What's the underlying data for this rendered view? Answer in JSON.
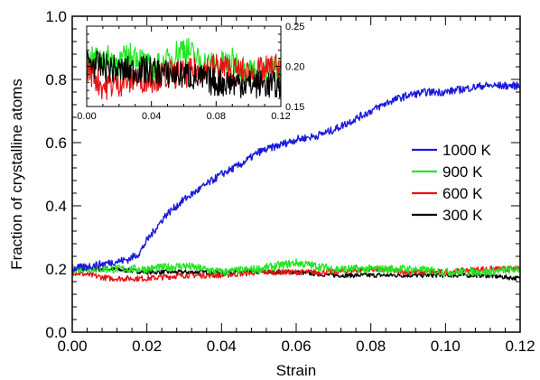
{
  "chart_data": {
    "type": "line",
    "xlabel": "Strain",
    "ylabel": "Fraction of crystalline atoms",
    "xlim": [
      0,
      0.12
    ],
    "ylim": [
      0,
      1.0
    ],
    "x_ticks": [
      "0.00",
      "0.02",
      "0.04",
      "0.06",
      "0.08",
      "0.10",
      "0.12"
    ],
    "y_ticks": [
      "0.0",
      "0.2",
      "0.4",
      "0.6",
      "0.8",
      "1.0"
    ],
    "legend_position": "right",
    "series": [
      {
        "name": "1000 K",
        "color": "#1a1adc",
        "x": [
          0.0,
          0.005,
          0.01,
          0.015,
          0.018,
          0.02,
          0.025,
          0.03,
          0.035,
          0.04,
          0.045,
          0.05,
          0.055,
          0.06,
          0.065,
          0.07,
          0.075,
          0.08,
          0.085,
          0.09,
          0.095,
          0.1,
          0.105,
          0.11,
          0.115,
          0.12
        ],
        "y": [
          0.2,
          0.21,
          0.22,
          0.23,
          0.25,
          0.29,
          0.37,
          0.42,
          0.46,
          0.5,
          0.53,
          0.57,
          0.59,
          0.61,
          0.62,
          0.64,
          0.67,
          0.7,
          0.73,
          0.75,
          0.76,
          0.76,
          0.77,
          0.78,
          0.78,
          0.78
        ]
      },
      {
        "name": "900 K",
        "color": "#22e622",
        "x": [
          0.0,
          0.01,
          0.02,
          0.03,
          0.04,
          0.05,
          0.06,
          0.07,
          0.08,
          0.09,
          0.1,
          0.11,
          0.12
        ],
        "y": [
          0.2,
          0.2,
          0.2,
          0.21,
          0.19,
          0.2,
          0.22,
          0.2,
          0.2,
          0.2,
          0.19,
          0.19,
          0.2
        ]
      },
      {
        "name": "600 K",
        "color": "#e61414",
        "x": [
          0.0,
          0.01,
          0.02,
          0.03,
          0.04,
          0.05,
          0.06,
          0.07,
          0.08,
          0.09,
          0.1,
          0.11,
          0.12
        ],
        "y": [
          0.19,
          0.17,
          0.17,
          0.18,
          0.18,
          0.19,
          0.19,
          0.19,
          0.2,
          0.19,
          0.19,
          0.2,
          0.2
        ]
      },
      {
        "name": "300 K",
        "color": "#000000",
        "x": [
          0.0,
          0.01,
          0.02,
          0.03,
          0.04,
          0.05,
          0.06,
          0.07,
          0.08,
          0.09,
          0.1,
          0.11,
          0.12
        ],
        "y": [
          0.2,
          0.2,
          0.19,
          0.19,
          0.19,
          0.19,
          0.19,
          0.18,
          0.18,
          0.18,
          0.18,
          0.18,
          0.17
        ]
      }
    ],
    "inset": {
      "xlim": [
        0,
        0.12
      ],
      "ylim": [
        0.15,
        0.25
      ],
      "x_ticks": [
        "0.00",
        "0.04",
        "0.08",
        "0.12"
      ],
      "y_ticks": [
        "0.15",
        "0.20",
        "0.25"
      ],
      "series": [
        {
          "color": "#22e622",
          "x": [
            0.0,
            0.01,
            0.02,
            0.03,
            0.04,
            0.05,
            0.06,
            0.07,
            0.08,
            0.09,
            0.1,
            0.11,
            0.12
          ],
          "y": [
            0.205,
            0.21,
            0.205,
            0.215,
            0.195,
            0.205,
            0.225,
            0.205,
            0.2,
            0.205,
            0.195,
            0.19,
            0.2
          ]
        },
        {
          "color": "#e61414",
          "x": [
            0.0,
            0.01,
            0.02,
            0.03,
            0.04,
            0.05,
            0.06,
            0.07,
            0.08,
            0.09,
            0.1,
            0.11,
            0.12
          ],
          "y": [
            0.2,
            0.175,
            0.18,
            0.185,
            0.185,
            0.19,
            0.19,
            0.195,
            0.2,
            0.195,
            0.19,
            0.195,
            0.2
          ]
        },
        {
          "color": "#000000",
          "x": [
            0.0,
            0.01,
            0.02,
            0.03,
            0.04,
            0.05,
            0.06,
            0.07,
            0.08,
            0.09,
            0.1,
            0.11,
            0.12
          ],
          "y": [
            0.205,
            0.2,
            0.195,
            0.195,
            0.195,
            0.19,
            0.19,
            0.185,
            0.18,
            0.18,
            0.178,
            0.178,
            0.175
          ]
        }
      ]
    }
  }
}
